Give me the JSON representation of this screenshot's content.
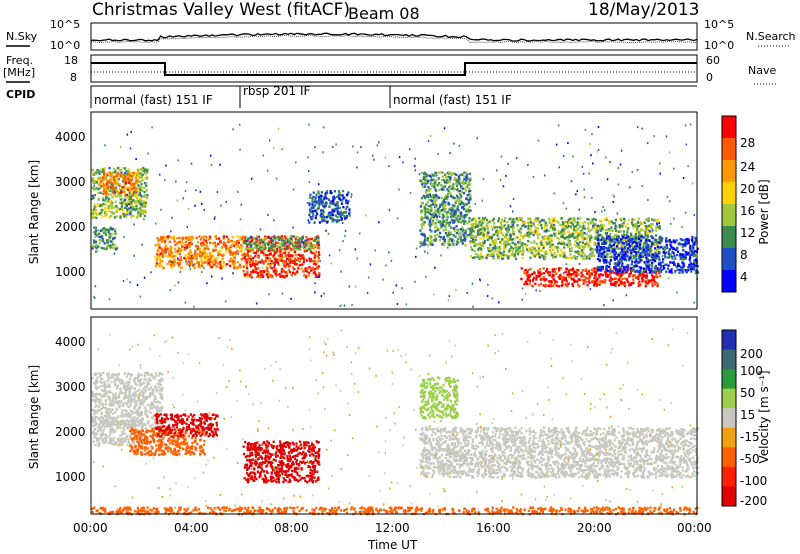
{
  "header": {
    "title": "Christmas Valley West (fitACF)",
    "beam": "Beam 08",
    "date": "18/May/2013"
  },
  "noise_panel": {
    "left_label": "N.Sky",
    "left_ticks": [
      "10^5",
      "10^0"
    ],
    "right_ticks": [
      "10^5",
      "10^0"
    ],
    "right_label": "N.Search"
  },
  "freq_panel": {
    "left_label_1": "Freq.",
    "left_label_2": "[MHz]",
    "left_ticks": [
      "18",
      "8"
    ],
    "right_ticks": [
      "60",
      "0"
    ],
    "right_label": "Nave"
  },
  "cpid_panel": {
    "label": "CPID",
    "segments": [
      {
        "name": "normal (fast) 151 IF",
        "start_hour": 0,
        "end_hour": 6
      },
      {
        "name": "rbsp 201 IF",
        "start_hour": 6,
        "end_hour": 11
      },
      {
        "name": "normal (fast) 151 IF",
        "start_hour": 11,
        "end_hour": 24
      }
    ]
  },
  "x_axis": {
    "label": "Time UT",
    "ticks": [
      "00:00",
      "04:00",
      "08:00",
      "12:00",
      "16:00",
      "20:00",
      "00:00"
    ]
  },
  "power_panel": {
    "ylabel": "Slant Range [km]",
    "yticks": [
      "4000",
      "3000",
      "2000",
      "1000"
    ],
    "colorbar_label": "Power [dB]",
    "colorbar_ticks": [
      "28",
      "24",
      "20",
      "16",
      "12",
      "8",
      "4"
    ],
    "colorbar_colors": [
      "#ff0000",
      "#ff5a00",
      "#ff9a00",
      "#ffd000",
      "#a0c83c",
      "#3c8c50",
      "#2050c8",
      "#0000ff"
    ]
  },
  "velocity_panel": {
    "ylabel": "Slant Range [km]",
    "yticks": [
      "4000",
      "3000",
      "2000",
      "1000"
    ],
    "colorbar_label": "Velocity [m s⁻¹]",
    "colorbar_ticks": [
      "200",
      "100",
      "50",
      "15",
      "-15",
      "-50",
      "-100",
      "-200"
    ],
    "colorbar_colors": [
      "#2030b0",
      "#3c6a70",
      "#2a9a3a",
      "#9ad04a",
      "#c8c8c0",
      "#f0a010",
      "#ff6000",
      "#ff2000",
      "#e00000"
    ]
  },
  "chart_data": {
    "type": "heatmap",
    "x_unit": "hour UT",
    "xlim": [
      0,
      24
    ],
    "ylim": [
      180,
      4500
    ],
    "power_regions": [
      {
        "t0": 0.0,
        "t1": 2.2,
        "r0": 2200,
        "r1": 3300,
        "level": 12
      },
      {
        "t0": 0.3,
        "t1": 1.8,
        "r0": 2700,
        "r1": 3200,
        "level": 22
      },
      {
        "t0": 0.0,
        "t1": 1.0,
        "r0": 1500,
        "r1": 2000,
        "level": 10
      },
      {
        "t0": 2.5,
        "t1": 6.0,
        "r0": 1100,
        "r1": 1800,
        "level": 22
      },
      {
        "t0": 6.0,
        "t1": 9.0,
        "r0": 900,
        "r1": 1800,
        "level": 26
      },
      {
        "t0": 6.0,
        "t1": 9.0,
        "r0": 1500,
        "r1": 1800,
        "level": 10
      },
      {
        "t0": 8.6,
        "t1": 10.2,
        "r0": 2100,
        "r1": 2800,
        "level": 6
      },
      {
        "t0": 13.0,
        "t1": 15.0,
        "r0": 1600,
        "r1": 3200,
        "level": 10
      },
      {
        "t0": 15.0,
        "t1": 22.5,
        "r0": 1300,
        "r1": 2200,
        "level": 12
      },
      {
        "t0": 17.0,
        "t1": 22.5,
        "r0": 700,
        "r1": 1100,
        "level": 28
      },
      {
        "t0": 20.0,
        "t1": 24.0,
        "r0": 1000,
        "r1": 1800,
        "level": 4
      }
    ],
    "velocity_regions": [
      {
        "t0": 0.0,
        "t1": 2.8,
        "r0": 2100,
        "r1": 3300,
        "vel": 0
      },
      {
        "t0": 0.0,
        "t1": 2.0,
        "r0": 1700,
        "r1": 2300,
        "vel": 0
      },
      {
        "t0": 1.5,
        "t1": 4.5,
        "r0": 1500,
        "r1": 2100,
        "vel": -80
      },
      {
        "t0": 2.5,
        "t1": 5.0,
        "r0": 1900,
        "r1": 2400,
        "vel": -220
      },
      {
        "t0": 6.0,
        "t1": 9.0,
        "r0": 900,
        "r1": 1800,
        "vel": -220
      },
      {
        "t0": 13.0,
        "t1": 24.0,
        "r0": 1000,
        "r1": 2100,
        "vel": 0
      },
      {
        "t0": 13.0,
        "t1": 14.5,
        "r0": 2300,
        "r1": 3200,
        "vel": 40
      },
      {
        "t0": 0.0,
        "t1": 24.0,
        "r0": 200,
        "r1": 350,
        "vel": -60
      }
    ]
  }
}
